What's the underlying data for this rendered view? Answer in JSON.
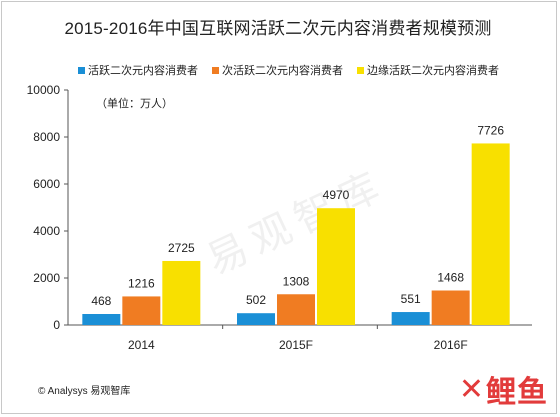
{
  "chart_data": {
    "type": "bar",
    "title": "2015-2016年中国互联网活跃二次元内容消费者规模预测",
    "unit_label": "（单位：万人）",
    "categories": [
      "2014",
      "2015F",
      "2016F"
    ],
    "series": [
      {
        "name": "活跃二次元内容消费者",
        "color": "#1a8fd6",
        "values": [
          468,
          502,
          551
        ]
      },
      {
        "name": "次活跃二次元内容消费者",
        "color": "#f07c22",
        "values": [
          1216,
          1308,
          1468
        ]
      },
      {
        "name": "边缘活跃二次元内容消费者",
        "color": "#f8e000",
        "values": [
          2725,
          4970,
          7726
        ]
      }
    ],
    "ylim": [
      0,
      10000
    ],
    "yticks": [
      0,
      2000,
      4000,
      6000,
      8000,
      10000
    ],
    "legend_position": "top",
    "grid": false
  },
  "source": "© Analysys 易观智库",
  "watermark": "易观智库",
  "logo_text": "鲤鱼"
}
